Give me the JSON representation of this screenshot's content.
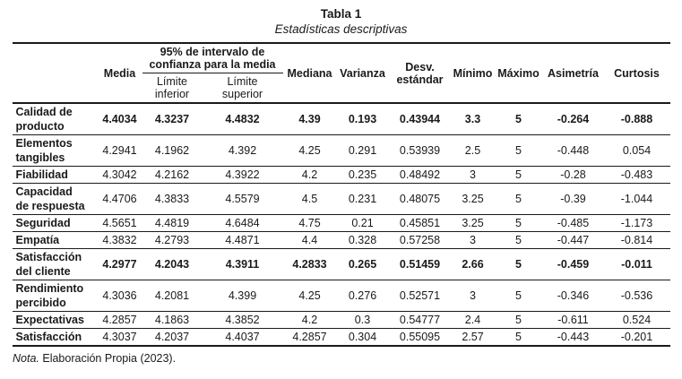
{
  "title": {
    "line1": "Tabla 1",
    "line2": "Estadísticas descriptivas"
  },
  "table": {
    "headers": {
      "media": "Media",
      "ci_group": "95% de intervalo de\nconfianza para la media",
      "ci_lower": "Límite\ninferior",
      "ci_upper": "Límite\nsuperior",
      "mediana": "Mediana",
      "varianza": "Varianza",
      "desv_estandar": "Desv.\nestándar",
      "minimo": "Mínimo",
      "maximo": "Máximo",
      "asimetria": "Asimetría",
      "curtosis": "Curtosis"
    },
    "rows": [
      {
        "label": "Calidad de\nproducto",
        "bold": true,
        "values": [
          "4.4034",
          "4.3237",
          "4.4832",
          "4.39",
          "0.193",
          "0.43944",
          "3.3",
          "5",
          "-0.264",
          "-0.888"
        ]
      },
      {
        "label": "Elementos\ntangibles",
        "bold": false,
        "values": [
          "4.2941",
          "4.1962",
          "4.392",
          "4.25",
          "0.291",
          "0.53939",
          "2.5",
          "5",
          "-0.448",
          "0.054"
        ]
      },
      {
        "label": "Fiabilidad",
        "bold": false,
        "values": [
          "4.3042",
          "4.2162",
          "4.3922",
          "4.2",
          "0.235",
          "0.48492",
          "3",
          "5",
          "-0.28",
          "-0.483"
        ]
      },
      {
        "label": "Capacidad\nde respuesta",
        "bold": false,
        "values": [
          "4.4706",
          "4.3833",
          "4.5579",
          "4.5",
          "0.231",
          "0.48075",
          "3.25",
          "5",
          "-0.39",
          "-1.044"
        ]
      },
      {
        "label": "Seguridad",
        "bold": false,
        "values": [
          "4.5651",
          "4.4819",
          "4.6484",
          "4.75",
          "0.21",
          "0.45851",
          "3.25",
          "5",
          "-0.485",
          "-1.173"
        ]
      },
      {
        "label": "Empatía",
        "bold": false,
        "values": [
          "4.3832",
          "4.2793",
          "4.4871",
          "4.4",
          "0.328",
          "0.57258",
          "3",
          "5",
          "-0.447",
          "-0.814"
        ]
      },
      {
        "label": "Satisfacción\ndel cliente",
        "bold": true,
        "values": [
          "4.2977",
          "4.2043",
          "4.3911",
          "4.2833",
          "0.265",
          "0.51459",
          "2.66",
          "5",
          "-0.459",
          "-0.011"
        ]
      },
      {
        "label": "Rendimiento\npercibido",
        "bold": false,
        "values": [
          "4.3036",
          "4.2081",
          "4.399",
          "4.25",
          "0.276",
          "0.52571",
          "3",
          "5",
          "-0.346",
          "-0.536"
        ]
      },
      {
        "label": "Expectativas",
        "bold": false,
        "values": [
          "4.2857",
          "4.1863",
          "4.3852",
          "4.2",
          "0.3",
          "0.54777",
          "2.4",
          "5",
          "-0.611",
          "0.524"
        ]
      },
      {
        "label": "Satisfacción",
        "bold": false,
        "values": [
          "4.3037",
          "4.2037",
          "4.4037",
          "4.2857",
          "0.304",
          "0.55095",
          "2.57",
          "5",
          "-0.443",
          "-0.201"
        ]
      }
    ]
  },
  "note": {
    "prefix": "Nota.",
    "rest": " Elaboración Propia (2023)."
  }
}
